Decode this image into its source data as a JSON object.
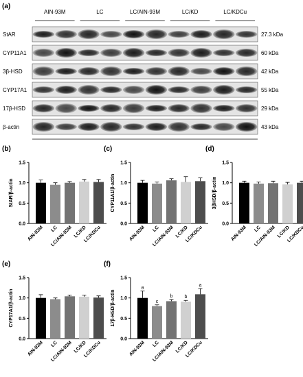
{
  "blot": {
    "panel": "(a)",
    "groups": [
      "AIN-93M",
      "LC",
      "LC/AIN-93M",
      "LC/KD",
      "LC/KDCu"
    ],
    "rows": [
      {
        "protein": "StAR",
        "size": "27.3 kDa"
      },
      {
        "protein": "CYP11A1",
        "size": "60 kDa"
      },
      {
        "protein": "3β-HSD",
        "size": "42 kDa"
      },
      {
        "protein": "CYP17A1",
        "size": "55 kDa"
      },
      {
        "protein": "17β-HSD",
        "size": "29 kDa"
      },
      {
        "protein": "β-actin",
        "size": "43 kDa"
      }
    ]
  },
  "chart_data": [
    {
      "type": "bar",
      "panel": "(b)",
      "y_label": "StAR/β-actin",
      "categories": [
        "AIN-93M",
        "LC",
        "LC/AIN-93M",
        "LC/KD",
        "LC/KDCu"
      ],
      "values": [
        1.0,
        0.95,
        1.0,
        1.03,
        1.02
      ],
      "errors": [
        0.07,
        0.05,
        0.03,
        0.05,
        0.06
      ],
      "colors": [
        "#000000",
        "#8c8c8c",
        "#737373",
        "#d0d0d0",
        "#4d4d4d"
      ],
      "ylim": [
        0,
        1.5
      ],
      "yticks": [
        {
          "value": 0,
          "label": "0.0"
        },
        {
          "value": 0.5,
          "label": "0.5"
        },
        {
          "value": 1,
          "label": "1.0"
        },
        {
          "value": 1.5,
          "label": "1.5"
        }
      ]
    },
    {
      "type": "bar",
      "panel": "(c)",
      "y_label": "CYP11A1/β-actin",
      "categories": [
        "AIN-93M",
        "LC",
        "LC/AIN-93M",
        "LC/KD",
        "LC/KDCu"
      ],
      "values": [
        1.0,
        0.98,
        1.06,
        1.02,
        1.04
      ],
      "errors": [
        0.06,
        0.04,
        0.04,
        0.13,
        0.08
      ],
      "colors": [
        "#000000",
        "#8c8c8c",
        "#737373",
        "#d0d0d0",
        "#4d4d4d"
      ],
      "ylim": [
        0,
        1.5
      ],
      "yticks": [
        {
          "value": 0,
          "label": "0.0"
        },
        {
          "value": 0.5,
          "label": "0.5"
        },
        {
          "value": 1,
          "label": "1.0"
        },
        {
          "value": 1.5,
          "label": "1.5"
        }
      ]
    },
    {
      "type": "bar",
      "panel": "(d)",
      "y_label": "3βHSD/β-actin",
      "categories": [
        "AIN-93M",
        "LC",
        "LC/AIN-93M",
        "LC/KD",
        "LC/KDCu"
      ],
      "values": [
        1.0,
        0.98,
        0.99,
        0.96,
        1.0
      ],
      "errors": [
        0.04,
        0.04,
        0.05,
        0.05,
        0.04
      ],
      "colors": [
        "#000000",
        "#8c8c8c",
        "#737373",
        "#d0d0d0",
        "#4d4d4d"
      ],
      "ylim": [
        0,
        1.5
      ],
      "yticks": [
        {
          "value": 0,
          "label": "0.0"
        },
        {
          "value": 0.5,
          "label": "0.5"
        },
        {
          "value": 1,
          "label": "1.0"
        },
        {
          "value": 1.5,
          "label": "1.5"
        }
      ]
    },
    {
      "type": "bar",
      "panel": "(e)",
      "y_label": "CYP17A1/β-actin",
      "categories": [
        "AIN-93M",
        "LC",
        "LC/AIN-93M",
        "LC/KD",
        "LC/KDCu"
      ],
      "values": [
        1.0,
        0.97,
        1.04,
        1.03,
        1.01
      ],
      "errors": [
        0.08,
        0.03,
        0.03,
        0.04,
        0.04
      ],
      "colors": [
        "#000000",
        "#8c8c8c",
        "#737373",
        "#d0d0d0",
        "#4d4d4d"
      ],
      "ylim": [
        0,
        1.5
      ],
      "yticks": [
        {
          "value": 0,
          "label": "0.0"
        },
        {
          "value": 0.5,
          "label": "0.5"
        },
        {
          "value": 1,
          "label": "1.0"
        },
        {
          "value": 1.5,
          "label": "1.5"
        }
      ]
    },
    {
      "type": "bar",
      "panel": "(f)",
      "y_label": "17β-HSD/β-actin",
      "categories": [
        "AIN-93M",
        "LC",
        "LC/AIN-93M",
        "LC/KD",
        "LC/KDCu"
      ],
      "values": [
        1.0,
        0.8,
        0.92,
        0.91,
        1.09
      ],
      "errors": [
        0.17,
        0.03,
        0.04,
        0.03,
        0.14
      ],
      "significance": [
        "a",
        "c",
        "b",
        "b",
        "a"
      ],
      "colors": [
        "#000000",
        "#8c8c8c",
        "#737373",
        "#d0d0d0",
        "#4d4d4d"
      ],
      "ylim": [
        0,
        1.5
      ],
      "yticks": [
        {
          "value": 0,
          "label": "0.0"
        },
        {
          "value": 0.5,
          "label": "0.5"
        },
        {
          "value": 1,
          "label": "1.0"
        },
        {
          "value": 1.5,
          "label": "1.5"
        }
      ]
    }
  ]
}
